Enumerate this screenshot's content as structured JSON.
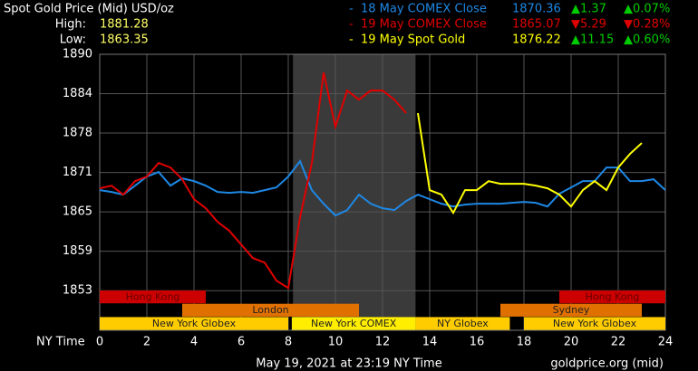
{
  "chart_data": {
    "type": "line",
    "title": "Spot Gold Price (Mid) USD/oz",
    "high_label": "High:",
    "high": 1881.28,
    "low_label": "Low:",
    "low": 1863.35,
    "xlabel": "NY Time",
    "footer": "May 19, 2021 at 23:19 NY Time",
    "source": "goldprice.org (mid)",
    "xlim": [
      0,
      24
    ],
    "xticks": [
      0,
      2,
      4,
      6,
      8,
      10,
      12,
      14,
      16,
      18,
      20,
      22,
      24
    ],
    "ylim": [
      1846.8,
      1890
    ],
    "yticks": [
      {
        "value": 1853,
        "label": "1853"
      },
      {
        "value": 1859.17,
        "label": "1859"
      },
      {
        "value": 1865.33,
        "label": "1865"
      },
      {
        "value": 1871.5,
        "label": "1871"
      },
      {
        "value": 1877.67,
        "label": "1878"
      },
      {
        "value": 1883.83,
        "label": "1884"
      },
      {
        "value": 1890,
        "label": "1890"
      }
    ],
    "grid": true,
    "shade": {
      "start": 8.2,
      "end": 13.4,
      "color": "#3a3a3a"
    },
    "sessions": [
      {
        "label": "Hong Kong",
        "start": 0,
        "end": 4.5,
        "row": 0,
        "color": "#cc0000"
      },
      {
        "label": "Hong Kong",
        "start": 19.5,
        "end": 24,
        "row": 0,
        "color": "#cc0000"
      },
      {
        "label": "London",
        "start": 3.5,
        "end": 11,
        "row": 1,
        "color": "#e07000"
      },
      {
        "label": "Sydney",
        "start": 17,
        "end": 23,
        "row": 1,
        "color": "#e07000"
      },
      {
        "label": "New York Globex",
        "start": 0,
        "end": 8,
        "row": 2,
        "color": "#ffcc00"
      },
      {
        "label": "New York COMEX",
        "start": 8.15,
        "end": 13.4,
        "row": 2,
        "color": "#ffee00"
      },
      {
        "label": "NY Globex",
        "start": 13.4,
        "end": 17.4,
        "row": 2,
        "color": "#ffcc00"
      },
      {
        "label": "New York Globex",
        "start": 18,
        "end": 24,
        "row": 2,
        "color": "#ffcc00"
      }
    ],
    "x": [
      0,
      0.5,
      1,
      1.5,
      2,
      2.5,
      3,
      3.5,
      4,
      4.5,
      5,
      5.5,
      6,
      6.5,
      7,
      7.5,
      8,
      8.5,
      9,
      9.5,
      10,
      10.5,
      11,
      11.5,
      12,
      12.5,
      13,
      13.5,
      14,
      14.5,
      15,
      15.5,
      16,
      16.5,
      17,
      17.5,
      18,
      18.5,
      19,
      19.5,
      20,
      20.5,
      21,
      21.5,
      22,
      22.5,
      23,
      23.5,
      24
    ],
    "series": [
      {
        "name": "18 May COMEX Close",
        "color": "#1e88e5",
        "close": 1870.36,
        "change": "▲1.37",
        "change_pct": "▲0.07%",
        "change_color": "#00cc00",
        "values": [
          1868.74,
          1868.45,
          1868.03,
          1869.44,
          1870.86,
          1871.57,
          1869.44,
          1870.58,
          1870.15,
          1869.44,
          1868.45,
          1868.31,
          1868.45,
          1868.31,
          1868.74,
          1869.16,
          1870.86,
          1873.27,
          1868.74,
          1866.61,
          1864.77,
          1865.62,
          1868.03,
          1866.61,
          1865.9,
          1865.62,
          1867.03,
          1868.03,
          1867.32,
          1866.61,
          1866.18,
          1866.47,
          1866.61,
          1866.61,
          1866.61,
          1866.75,
          1866.89,
          1866.75,
          1866.18,
          1868.17,
          1869.16,
          1870.15,
          1870.15,
          1872.28,
          1872.28,
          1870.15,
          1870.15,
          1870.44,
          1868.74
        ]
      },
      {
        "name": "19 May COMEX Close",
        "color": "#e00000",
        "close": 1865.07,
        "change": "▼5.29",
        "change_pct": "▼0.28%",
        "change_color": "#e00000",
        "values": [
          1869.02,
          1869.44,
          1868.03,
          1870.15,
          1870.86,
          1872.99,
          1872.28,
          1870.44,
          1867.32,
          1865.9,
          1863.77,
          1862.36,
          1860.23,
          1858.1,
          1857.4,
          1854.56,
          1853.43,
          1864.48,
          1872.99,
          1887.16,
          1878.66,
          1884.33,
          1882.91,
          1884.33,
          1884.33,
          1882.91,
          1880.79,
          null,
          null,
          null,
          null,
          null,
          null,
          null,
          null,
          null,
          null,
          null,
          null,
          null,
          null,
          null,
          null,
          null,
          null,
          null,
          null,
          null,
          null
        ]
      },
      {
        "name": "19 May Spot Gold",
        "color": "#ffff00",
        "close": 1876.22,
        "change": "▲11.15",
        "change_pct": "▲0.60%",
        "change_color": "#00cc00",
        "values": [
          null,
          null,
          null,
          null,
          null,
          null,
          null,
          null,
          null,
          null,
          null,
          null,
          null,
          null,
          null,
          null,
          null,
          null,
          null,
          null,
          null,
          null,
          null,
          null,
          null,
          null,
          null,
          1880.79,
          1868.74,
          1868.03,
          1865.19,
          1868.74,
          1868.74,
          1870.15,
          1869.73,
          1869.73,
          1869.73,
          1869.44,
          1869.02,
          1868.03,
          1866.18,
          1868.74,
          1870.15,
          1868.74,
          1872.28,
          1874.41,
          1876.11,
          null,
          null
        ]
      }
    ]
  }
}
